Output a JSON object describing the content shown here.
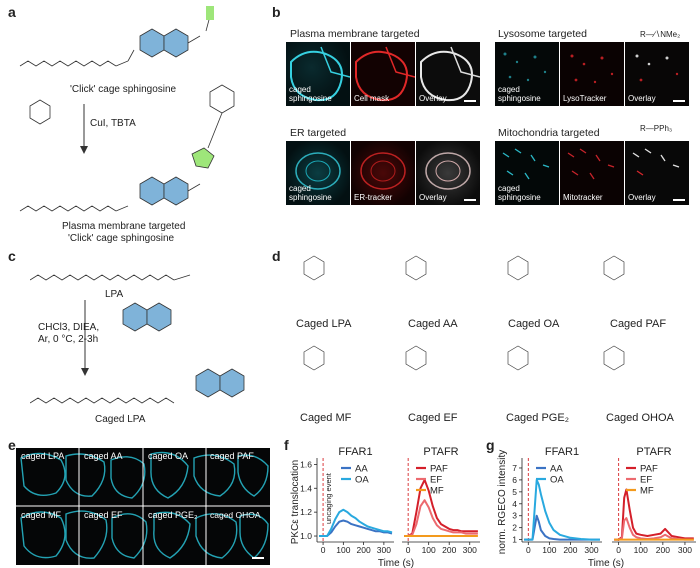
{
  "panels": {
    "a": "a",
    "b": "b",
    "c": "c",
    "d": "d",
    "e": "e",
    "f": "f",
    "g": "g"
  },
  "panel_a": {
    "top_caption": "'Click' cage sphingosine",
    "reagents": "CuI, TBTA",
    "bottom_caption_line1": "Plasma membrane targeted",
    "bottom_caption_line2": "'Click' cage sphingosine"
  },
  "panel_b": {
    "groups": [
      {
        "title": "Plasma membrane targeted",
        "tiles": [
          "caged\nsphingosine",
          "Cell mask",
          "Overlay"
        ]
      },
      {
        "title": "Lysosome targeted",
        "tiles": [
          "caged\nsphingosine",
          "LysoTracker",
          "Overlay"
        ]
      },
      {
        "title": "ER targeted",
        "tiles": [
          "caged\nsphingosine",
          "ER-tracker",
          "Overlay"
        ]
      },
      {
        "title": "Mitochondria targeted",
        "tiles": [
          "caged\nsphingosine",
          "Mitotracker",
          "Overlay"
        ]
      }
    ],
    "tag_lyso": "R—∕∖NMe₂",
    "tag_mito": "R—PPh₃"
  },
  "panel_c": {
    "top_caption": "LPA",
    "reagents_line1": "CHCl3, DIEA,",
    "reagents_line2": "Ar, 0 °C, 2-3h",
    "bottom_caption": "Caged LPA"
  },
  "panel_d": {
    "names": [
      "Caged LPA",
      "Caged AA",
      "Caged OA",
      "Caged PAF",
      "Caged MF",
      "Caged EF",
      "Caged PGE₂",
      "Caged OHOA"
    ]
  },
  "panel_e": {
    "labels": [
      "caged LPA",
      "caged AA",
      "caged OA",
      "caged PAF",
      "caged MF",
      "caged EF",
      "caged PGE₂",
      "caged OHOA"
    ]
  },
  "colors": {
    "cyan": "#2bc2d6",
    "red": "#d8262b",
    "blue_AA": "#3b73c4",
    "cyan_OA": "#29a9df",
    "red_PAF": "#d41f2a",
    "pink_EF": "#ec6a6f",
    "orange_MF": "#f39a1d",
    "dash": "#d6272b"
  },
  "chart_data": [
    {
      "id": "f",
      "type": "line",
      "ylabel": "PKCε translocation",
      "xlabel": "Time (s)",
      "annotation": "uncaging event",
      "ylim": [
        0.95,
        1.62
      ],
      "yticks": [
        "1.0",
        "1.2",
        "1.4",
        "1.6"
      ],
      "subplots": [
        {
          "title": "FFAR1",
          "xlim": [
            -30,
            350
          ],
          "xticks": [
            0,
            100,
            200,
            300
          ],
          "series": [
            {
              "name": "AA",
              "color": "#3b73c4",
              "x": [
                -20,
                0,
                20,
                40,
                60,
                80,
                100,
                120,
                140,
                160,
                180,
                200,
                220,
                240,
                260,
                280,
                300,
                320,
                340
              ],
              "y": [
                1.0,
                1.0,
                1.0,
                1.03,
                1.08,
                1.12,
                1.13,
                1.12,
                1.1,
                1.09,
                1.08,
                1.07,
                1.06,
                1.05,
                1.04,
                1.04,
                1.03,
                1.03,
                1.02
              ]
            },
            {
              "name": "OA",
              "color": "#29a9df",
              "x": [
                -20,
                0,
                20,
                40,
                60,
                80,
                100,
                120,
                140,
                160,
                180,
                200,
                220,
                240,
                260,
                280,
                300,
                320,
                340
              ],
              "y": [
                1.0,
                1.0,
                1.0,
                1.06,
                1.14,
                1.2,
                1.22,
                1.2,
                1.17,
                1.15,
                1.12,
                1.1,
                1.08,
                1.07,
                1.06,
                1.05,
                1.04,
                1.04,
                1.03
              ]
            }
          ]
        },
        {
          "title": "PTAFR",
          "xlim": [
            -30,
            350
          ],
          "xticks": [
            0,
            100,
            200,
            300
          ],
          "series": [
            {
              "name": "PAF",
              "color": "#d41f2a",
              "x": [
                -20,
                0,
                20,
                40,
                60,
                80,
                100,
                120,
                140,
                160,
                180,
                200,
                220,
                240,
                260,
                280,
                300,
                320,
                340
              ],
              "y": [
                1.0,
                1.0,
                1.02,
                1.2,
                1.4,
                1.47,
                1.38,
                1.25,
                1.15,
                1.1,
                1.08,
                1.06,
                1.05,
                1.05,
                1.04,
                1.04,
                1.04,
                1.04,
                1.04
              ]
            },
            {
              "name": "EF",
              "color": "#ec6a6f",
              "x": [
                -20,
                0,
                20,
                40,
                60,
                80,
                100,
                120,
                140,
                160,
                180,
                200,
                220,
                240,
                260,
                280,
                300,
                320,
                340
              ],
              "y": [
                1.0,
                1.0,
                1.01,
                1.1,
                1.25,
                1.3,
                1.24,
                1.15,
                1.09,
                1.06,
                1.05,
                1.04,
                1.03,
                1.03,
                1.03,
                1.02,
                1.02,
                1.02,
                1.02
              ]
            },
            {
              "name": "MF",
              "color": "#f39a1d",
              "x": [
                -20,
                0,
                20,
                40,
                60,
                80,
                100,
                120,
                140,
                160,
                180,
                200,
                220,
                240,
                260,
                280,
                300,
                320,
                340
              ],
              "y": [
                1.0,
                1.0,
                1.0,
                1.0,
                1.0,
                1.0,
                1.0,
                1.0,
                1.0,
                1.0,
                1.0,
                1.0,
                1.0,
                1.0,
                1.0,
                1.0,
                1.0,
                1.0,
                1.0
              ]
            }
          ]
        }
      ]
    },
    {
      "id": "g",
      "type": "line",
      "ylabel": "norm. RGECO intensity",
      "xlabel": "Time (s)",
      "ylim": [
        0.8,
        7.5
      ],
      "yticks": [
        "1",
        "2",
        "3",
        "4",
        "5",
        "6",
        "7"
      ],
      "subplots": [
        {
          "title": "FFAR1",
          "xlim": [
            -30,
            350
          ],
          "xticks": [
            0,
            100,
            200,
            300
          ],
          "series": [
            {
              "name": "AA",
              "color": "#3b73c4",
              "x": [
                -20,
                0,
                20,
                30,
                40,
                50,
                60,
                80,
                100,
                120,
                150,
                200,
                250,
                300,
                340
              ],
              "y": [
                1.0,
                1.0,
                1.0,
                2.0,
                3.0,
                2.5,
                1.8,
                1.3,
                1.1,
                1.05,
                1.0,
                1.0,
                1.0,
                1.0,
                1.0
              ]
            },
            {
              "name": "OA",
              "color": "#29a9df",
              "x": [
                -20,
                0,
                20,
                30,
                40,
                50,
                60,
                80,
                100,
                120,
                150,
                200,
                250,
                300,
                340
              ],
              "y": [
                1.0,
                1.0,
                1.0,
                3.5,
                6.0,
                5.6,
                4.8,
                3.4,
                2.4,
                1.8,
                1.4,
                1.15,
                1.05,
                1.0,
                1.0
              ]
            }
          ]
        },
        {
          "title": "PTAFR",
          "xlim": [
            -30,
            350
          ],
          "xticks": [
            0,
            100,
            200,
            300
          ],
          "series": [
            {
              "name": "PAF",
              "color": "#d41f2a",
              "x": [
                -20,
                0,
                15,
                25,
                35,
                50,
                65,
                80,
                100,
                130,
                160,
                190,
                210,
                240,
                270,
                300,
                340
              ],
              "y": [
                1.0,
                1.0,
                1.2,
                4.5,
                5.2,
                3.5,
                2.0,
                1.5,
                1.4,
                1.3,
                1.4,
                1.5,
                1.9,
                1.3,
                1.2,
                1.1,
                1.1
              ]
            },
            {
              "name": "EF",
              "color": "#ec6a6f",
              "x": [
                -20,
                0,
                15,
                25,
                35,
                50,
                65,
                80,
                100,
                130,
                160,
                190,
                210,
                240,
                270,
                300,
                340
              ],
              "y": [
                1.0,
                1.0,
                1.1,
                2.6,
                2.8,
                2.0,
                1.4,
                1.2,
                1.1,
                1.05,
                1.1,
                1.2,
                1.4,
                1.1,
                1.05,
                1.0,
                1.0
              ]
            },
            {
              "name": "MF",
              "color": "#f39a1d",
              "x": [
                -20,
                0,
                15,
                25,
                35,
                50,
                65,
                80,
                100,
                130,
                160,
                190,
                210,
                240,
                270,
                300,
                340
              ],
              "y": [
                1.0,
                1.0,
                1.0,
                1.0,
                1.0,
                1.0,
                1.0,
                1.0,
                1.0,
                1.0,
                1.0,
                1.0,
                1.0,
                1.0,
                1.0,
                1.0,
                1.0
              ]
            }
          ]
        }
      ]
    }
  ]
}
